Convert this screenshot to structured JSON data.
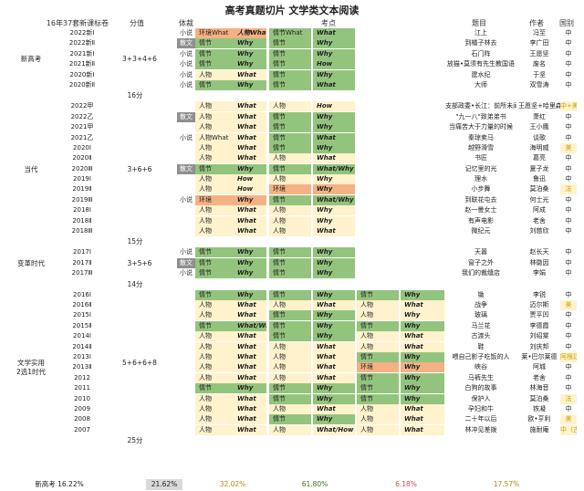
{
  "title": "高考真题切片 文学类文本阅读",
  "headers": {
    "papers": "16年37套新课标卷",
    "score": "分值",
    "genre": "体裁",
    "points": "考点",
    "text_title": "题目",
    "author": "作者",
    "country": "国别"
  },
  "sections": [
    {
      "name": "新高考",
      "score": "3+3+4+6",
      "rows": [
        {
          "y": "2022新Ⅰ",
          "t": "小说",
          "a1": "环境What",
          "a2": "人物What",
          "b1": "情节What",
          "b2": "What",
          "c1": "",
          "c2": "",
          "tm": "江上",
          "au": "冯至",
          "cn": "中"
        },
        {
          "y": "2022新Ⅱ",
          "t": "散文",
          "a1": "情节",
          "a2": "Why",
          "b1": "情节",
          "b2": "Why",
          "c1": "",
          "c2": "",
          "tm": "到橘子林去",
          "au": "李广田",
          "cn": "中"
        },
        {
          "y": "2021新Ⅰ",
          "t": "小说",
          "a1": "情节",
          "a2": "Why",
          "b1": "情节",
          "b2": "Why",
          "c1": "",
          "c2": "",
          "tm": "石门阵",
          "au": "王愿坚",
          "cn": "中"
        },
        {
          "y": "2021新Ⅱ",
          "t": "小说",
          "a1": "情节",
          "a2": "Why",
          "b1": "情节",
          "b2": "How",
          "c1": "",
          "c2": "",
          "tm": "放猫•莫须有先生教国语",
          "au": "废名",
          "cn": "中"
        },
        {
          "y": "2020新Ⅰ",
          "t": "小说",
          "a1": "人物",
          "a2": "What",
          "b1": "情节",
          "b2": "Why",
          "c1": "",
          "c2": "",
          "tm": "建水纪",
          "au": "于坚",
          "cn": "中"
        },
        {
          "y": "2020新Ⅱ",
          "t": "小说",
          "a1": "情节",
          "a2": "Why",
          "b1": "情节",
          "b2": "What",
          "c1": "",
          "c2": "",
          "tm": "大师",
          "au": "双雪涛",
          "cn": "中"
        }
      ],
      "total": "16分"
    },
    {
      "name": "当代",
      "score": "3+6+6",
      "rows": [
        {
          "y": "2022甲",
          "t": "",
          "a1": "人物",
          "a2": "What",
          "b1": "人物",
          "b2": "How",
          "c1": "",
          "c2": "",
          "tm": "支部政委•长江：前所未闻的故事",
          "au": "王愿坚+哈里森",
          "cn": "中+美"
        },
        {
          "y": "2022乙",
          "t": "散文",
          "a1": "人物",
          "a2": "What",
          "b1": "情节",
          "b2": "Why",
          "c1": "",
          "c2": "",
          "tm": "\"九一八\"致弟弟书",
          "au": "萧红",
          "cn": "中"
        },
        {
          "y": "2021甲",
          "t": "",
          "a1": "人物",
          "a2": "What",
          "b1": "情节",
          "b2": "Why",
          "c1": "",
          "c2": "",
          "tm": "当痛苦大于力量的时候",
          "au": "王小鹰",
          "cn": "中"
        },
        {
          "y": "2021乙",
          "t": "小说",
          "a1": "人物What",
          "a2": "What",
          "b1": "情节",
          "b2": "What",
          "c1": "",
          "c2": "",
          "tm": "秦琼卖马",
          "au": "谈歌",
          "cn": "中"
        },
        {
          "y": "2020Ⅰ",
          "t": "",
          "a1": "人物",
          "a2": "What",
          "b1": "情节",
          "b2": "Why",
          "c1": "",
          "c2": "",
          "tm": "越野滑雪",
          "au": "海明威",
          "cn": "美"
        },
        {
          "y": "2020Ⅱ",
          "t": "",
          "a1": "人物",
          "a2": "What",
          "b1": "人物",
          "b2": "What",
          "c1": "",
          "c2": "",
          "tm": "书匠",
          "au": "葛亮",
          "cn": "中"
        },
        {
          "y": "2020Ⅲ",
          "t": "散文",
          "a1": "情节",
          "a2": "Why",
          "b1": "情节",
          "b2": "What/Why",
          "c1": "",
          "c2": "",
          "tm": "记忆里的光",
          "au": "夏子龙",
          "cn": "中"
        },
        {
          "y": "2019Ⅰ",
          "t": "",
          "a1": "人物",
          "a2": "How",
          "b1": "人物",
          "b2": "Why",
          "c1": "",
          "c2": "",
          "tm": "理水",
          "au": "鲁迅",
          "cn": "中"
        },
        {
          "y": "2019Ⅱ",
          "t": "",
          "a1": "人物",
          "a2": "How",
          "b1": "环境",
          "b2": "Why",
          "c1": "",
          "c2": "",
          "tm": "小步舞",
          "au": "莫泊桑",
          "cn": "法"
        },
        {
          "y": "2019Ⅲ",
          "t": "小说",
          "a1": "环境",
          "a2": "Why",
          "b1": "情节",
          "b2": "What/Why",
          "c1": "",
          "c2": "",
          "tm": "到联花屯去",
          "au": "何士光",
          "cn": "中"
        },
        {
          "y": "2018Ⅰ",
          "t": "",
          "a1": "人物",
          "a2": "What",
          "b1": "人物",
          "b2": "Why",
          "c1": "",
          "c2": "",
          "tm": "赵一曼女士",
          "au": "阿成",
          "cn": "中"
        },
        {
          "y": "2018Ⅱ",
          "t": "",
          "a1": "人物",
          "a2": "What",
          "b1": "人物",
          "b2": "Why",
          "c1": "",
          "c2": "",
          "tm": "有声电影",
          "au": "老舍",
          "cn": "中"
        },
        {
          "y": "2018Ⅲ",
          "t": "",
          "a1": "人物",
          "a2": "What",
          "b1": "人物",
          "b2": "What",
          "c1": "",
          "c2": "",
          "tm": "微纪元",
          "au": "刘慈欣",
          "cn": "中"
        }
      ],
      "total": "15分"
    },
    {
      "name": "变革时代",
      "score": "3+5+6",
      "rows": [
        {
          "y": "2017Ⅰ",
          "t": "小说",
          "a1": "情节",
          "a2": "Why",
          "b1": "情节",
          "b2": "Why",
          "c1": "",
          "c2": "",
          "tm": "天嚣",
          "au": "赵长天",
          "cn": "中"
        },
        {
          "y": "2017Ⅱ",
          "t": "散文",
          "a1": "情节",
          "a2": "Why",
          "b1": "情节",
          "b2": "Why",
          "c1": "",
          "c2": "",
          "tm": "窗子之外",
          "au": "林徽因",
          "cn": "中"
        },
        {
          "y": "2017Ⅲ",
          "t": "小说",
          "a1": "情节",
          "a2": "Why",
          "b1": "情节",
          "b2": "Why",
          "c1": "",
          "c2": "",
          "tm": "我们的裁缝店",
          "au": "李娟",
          "cn": "中"
        }
      ],
      "total": "14分"
    },
    {
      "name": "文学实用\n2选1时代",
      "score": "5+6+6+8",
      "rows": [
        {
          "y": "2016Ⅰ",
          "t": "",
          "a1": "情节",
          "a2": "Why",
          "b1": "情节",
          "b2": "Why",
          "c1": "情节",
          "c2": "Why",
          "tm": "锄",
          "au": "李锐",
          "cn": "中"
        },
        {
          "y": "2016Ⅱ",
          "t": "",
          "a1": "人物",
          "a2": "What",
          "b1": "人物",
          "b2": "What",
          "c1": "人物",
          "c2": "What",
          "tm": "战争",
          "au": "迈尔斯",
          "cn": "美"
        },
        {
          "y": "2015Ⅰ",
          "t": "",
          "a1": "人物",
          "a2": "What",
          "b1": "情节",
          "b2": "Why",
          "c1": "人物",
          "c2": "Why",
          "tm": "玻璃",
          "au": "贾平凹",
          "cn": "中"
        },
        {
          "y": "2015Ⅱ",
          "t": "",
          "a1": "情节",
          "a2": "What/Why",
          "b1": "情节",
          "b2": "Why",
          "c1": "情节",
          "c2": "Why",
          "tm": "马兰花",
          "au": "李德霞",
          "cn": "中"
        },
        {
          "y": "2014Ⅰ",
          "t": "",
          "a1": "人物",
          "a2": "What",
          "b1": "情节",
          "b2": "Why",
          "c1": "人物",
          "c2": "What",
          "tm": "古渡头",
          "au": "刘绍棠",
          "cn": "中"
        },
        {
          "y": "2014Ⅱ",
          "t": "",
          "a1": "人物",
          "a2": "What",
          "b1": "人物",
          "b2": "What",
          "c1": "人物",
          "c2": "What",
          "tm": "鞋",
          "au": "刘庆邦",
          "cn": "中"
        },
        {
          "y": "2013Ⅰ",
          "t": "",
          "a1": "人物",
          "a2": "What",
          "b1": "人物",
          "b2": "What",
          "c1": "情节",
          "c2": "Why",
          "tm": "喂自己影子吃饭的人",
          "au": "莱•巴尔莱德",
          "cn": "阿根廷"
        },
        {
          "y": "2013Ⅱ",
          "t": "",
          "a1": "人物",
          "a2": "What",
          "b1": "人物",
          "b2": "What",
          "c1": "环境",
          "c2": "Why",
          "tm": "峡谷",
          "au": "阿城",
          "cn": "中"
        },
        {
          "y": "2012",
          "t": "",
          "a1": "人物",
          "a2": "What",
          "b1": "人物",
          "b2": "What",
          "c1": "情节",
          "c2": "Why",
          "tm": "马裤先生",
          "au": "老舍",
          "cn": "中"
        },
        {
          "y": "2011",
          "t": "",
          "a1": "情节",
          "a2": "Why",
          "b1": "情节",
          "b2": "Why",
          "c1": "情节",
          "c2": "Why",
          "tm": "白狗的故事",
          "au": "林海音",
          "cn": "中"
        },
        {
          "y": "2010",
          "t": "",
          "a1": "人物",
          "a2": "What",
          "b1": "情节",
          "b2": "Why",
          "c1": "情节",
          "c2": "Why",
          "tm": "保护人",
          "au": "莫泊桑",
          "cn": "法"
        },
        {
          "y": "2009",
          "t": "",
          "a1": "人物",
          "a2": "What",
          "b1": "人物",
          "b2": "What",
          "c1": "人物",
          "c2": "What",
          "tm": "孕妇和牛",
          "au": "铁凝",
          "cn": "中"
        },
        {
          "y": "2008",
          "t": "",
          "a1": "人物",
          "a2": "What",
          "b1": "情节",
          "b2": "Why",
          "c1": "人物",
          "c2": "What",
          "tm": "二十年以后",
          "au": "欧•亨利",
          "cn": "美"
        },
        {
          "y": "2007",
          "t": "",
          "a1": "人物",
          "a2": "What",
          "b1": "人物",
          "b2": "What/How",
          "c1": "人物",
          "c2": "What",
          "tm": "林冲见差拨",
          "au": "施耐庵",
          "cn": "中（古）"
        }
      ],
      "total": "25分"
    }
  ],
  "footer": {
    "label": "新高考 16.22%",
    "p1": "21.62%",
    "p2": "32.02%",
    "p3": "61.80%",
    "p4": "6.18%",
    "p5": "17.57%"
  }
}
